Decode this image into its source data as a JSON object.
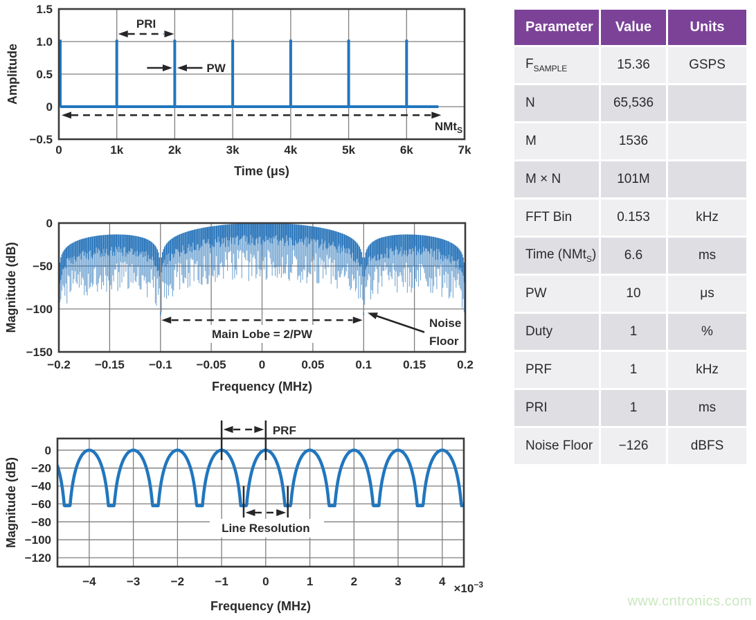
{
  "colors": {
    "accent_blue": "#2176BE",
    "spectrum_blue": "#1F6FB8",
    "frame": "#3A3A3C",
    "grid": "#7E7E7E",
    "text": "#2A2A2C",
    "arrow": "#262628",
    "table_header_bg": "#7C4298",
    "table_header_text": "#FFFFFF",
    "row_light": "#EFEEF0",
    "row_dark": "#DFDEE3",
    "watermark_color": "#C9E8BF"
  },
  "watermark": {
    "text": "www.cntronics.com"
  },
  "table": {
    "headers": [
      "Parameter",
      "Value",
      "Units"
    ],
    "rows": [
      {
        "param": "F",
        "param_sub": "SAMPLE",
        "param_suffix": "",
        "value": "15.36",
        "units": "GSPS"
      },
      {
        "param": "N",
        "param_sub": "",
        "param_suffix": "",
        "value": "65,536",
        "units": ""
      },
      {
        "param": "M",
        "param_sub": "",
        "param_suffix": "",
        "value": "1536",
        "units": ""
      },
      {
        "param": "M × N",
        "param_sub": "",
        "param_suffix": "",
        "value": "101M",
        "units": ""
      },
      {
        "param": "FFT Bin",
        "param_sub": "",
        "param_suffix": "",
        "value": "0.153",
        "units": "kHz"
      },
      {
        "param": "Time (NMt",
        "param_sub": "S",
        "param_suffix": ")",
        "value": "6.6",
        "units": "ms"
      },
      {
        "param": "PW",
        "param_sub": "",
        "param_suffix": "",
        "value": "10",
        "units": "μs"
      },
      {
        "param": "Duty",
        "param_sub": "",
        "param_suffix": "",
        "value": "1",
        "units": "%"
      },
      {
        "param": "PRF",
        "param_sub": "",
        "param_suffix": "",
        "value": "1",
        "units": "kHz"
      },
      {
        "param": "PRI",
        "param_sub": "",
        "param_suffix": "",
        "value": "1",
        "units": "ms"
      },
      {
        "param": "Noise Floor",
        "param_sub": "",
        "param_suffix": "",
        "value": "−126",
        "units": "dBFS"
      }
    ]
  },
  "chart_data": [
    {
      "type": "line",
      "id": "pulse-train",
      "title": "",
      "xlabel": "Time (μs)",
      "ylabel": "Amplitude",
      "xlim": [
        0,
        7000
      ],
      "ylim": [
        -0.5,
        1.5
      ],
      "grid": true,
      "xticks": [
        {
          "v": 0,
          "label": "0"
        },
        {
          "v": 1000,
          "label": "1k"
        },
        {
          "v": 2000,
          "label": "2k"
        },
        {
          "v": 3000,
          "label": "3k"
        },
        {
          "v": 4000,
          "label": "4k"
        },
        {
          "v": 5000,
          "label": "5k"
        },
        {
          "v": 6000,
          "label": "6k"
        },
        {
          "v": 7000,
          "label": "7k"
        }
      ],
      "yticks": [
        {
          "v": 1.5,
          "label": "1.5"
        },
        {
          "v": 1.0,
          "label": "1.0"
        },
        {
          "v": 0.5,
          "label": "0.5"
        },
        {
          "v": 0,
          "label": "0"
        },
        {
          "v": -0.5,
          "label": "−0.5"
        }
      ],
      "series": [
        {
          "name": "pulse train",
          "pulse_positions_us": [
            0,
            1000,
            2000,
            3000,
            4000,
            5000,
            6000
          ],
          "pulse_amplitude": 1.03,
          "pulse_width_us": 10,
          "baseline_span_us": [
            0,
            6550
          ]
        }
      ],
      "annotations": {
        "pri": {
          "label": "PRI",
          "arrow_x": [
            1000,
            2000
          ]
        },
        "pw": {
          "label": "PW",
          "x": 2000
        },
        "nmt": {
          "label_main": "NMt",
          "label_sub": "S",
          "arrow_x": [
            0,
            6550
          ],
          "arrow_y": -0.13
        }
      }
    },
    {
      "type": "line",
      "id": "pulse-spectrum",
      "title": "",
      "xlabel": "Frequency (MHz)",
      "ylabel": "Magnitude (dB)",
      "xlim": [
        -0.2,
        0.2
      ],
      "ylim": [
        -150,
        0
      ],
      "grid": true,
      "xticks": [
        {
          "v": -0.2,
          "label": "−0.2"
        },
        {
          "v": -0.15,
          "label": "−0.15"
        },
        {
          "v": -0.1,
          "label": "−0.1"
        },
        {
          "v": -0.05,
          "label": "−0.05"
        },
        {
          "v": 0,
          "label": "0"
        },
        {
          "v": 0.05,
          "label": "0.05"
        },
        {
          "v": 0.1,
          "label": "0.1"
        },
        {
          "v": 0.15,
          "label": "0.15"
        },
        {
          "v": 0.2,
          "label": "0.2"
        }
      ],
      "yticks": [
        {
          "v": 0,
          "label": "0"
        },
        {
          "v": -50,
          "label": "−50"
        },
        {
          "v": -100,
          "label": "−100"
        },
        {
          "v": -150,
          "label": "−150"
        }
      ],
      "series": [
        {
          "name": "pulse train spectrum",
          "envelope": "sinc",
          "null_spacing_mhz": 0.1,
          "line_spacing_mhz": 0.001,
          "peak_db": 0,
          "first_sidelobe_db": -13,
          "null_depth_db": -105,
          "noise_floor_db": -104
        }
      ],
      "annotations": {
        "main_lobe": {
          "label": "Main Lobe = 2/PW",
          "arrow_x": [
            -0.1,
            0.1
          ],
          "arrow_y": -113,
          "label_y": -133
        },
        "noise_floor": {
          "label_line1": "Noise",
          "label_line2": "Floor",
          "points_to_x": 0.1,
          "points_to_y": -105
        }
      }
    },
    {
      "type": "line",
      "id": "prf-lines",
      "title": "",
      "xlabel": "Frequency (MHz)",
      "x_scale_main": "×10",
      "x_scale_sup": "−3",
      "ylabel": "Magnitude (dB)",
      "xlim": [
        -4.72,
        4.49
      ],
      "ylim": [
        -130,
        13
      ],
      "grid": true,
      "xticks": [
        {
          "v": -4,
          "label": "−4"
        },
        {
          "v": -3,
          "label": "−3"
        },
        {
          "v": -2,
          "label": "−2"
        },
        {
          "v": -1,
          "label": "−1"
        },
        {
          "v": 0,
          "label": "0"
        },
        {
          "v": 1,
          "label": "1"
        },
        {
          "v": 2,
          "label": "2"
        },
        {
          "v": 3,
          "label": "3"
        },
        {
          "v": 4,
          "label": "4"
        }
      ],
      "yticks": [
        {
          "v": 0,
          "label": "0"
        },
        {
          "v": -20,
          "label": "−20"
        },
        {
          "v": -40,
          "label": "−40"
        },
        {
          "v": -60,
          "label": "−60"
        },
        {
          "v": -80,
          "label": "−80"
        },
        {
          "v": -100,
          "label": "−100"
        },
        {
          "v": -120,
          "label": "−120"
        }
      ],
      "series": [
        {
          "name": "spectral lines at PRF spacing",
          "lobe_period_khz": 1,
          "peak_db": 0,
          "null_db": -62,
          "shape_exponent": 90
        }
      ],
      "annotations": {
        "prf": {
          "label": "PRF",
          "lines_x": [
            -1,
            0
          ]
        },
        "line_resolution": {
          "label": "Line Resolution",
          "ticks_x": [
            -0.5,
            0.5
          ]
        }
      }
    }
  ]
}
